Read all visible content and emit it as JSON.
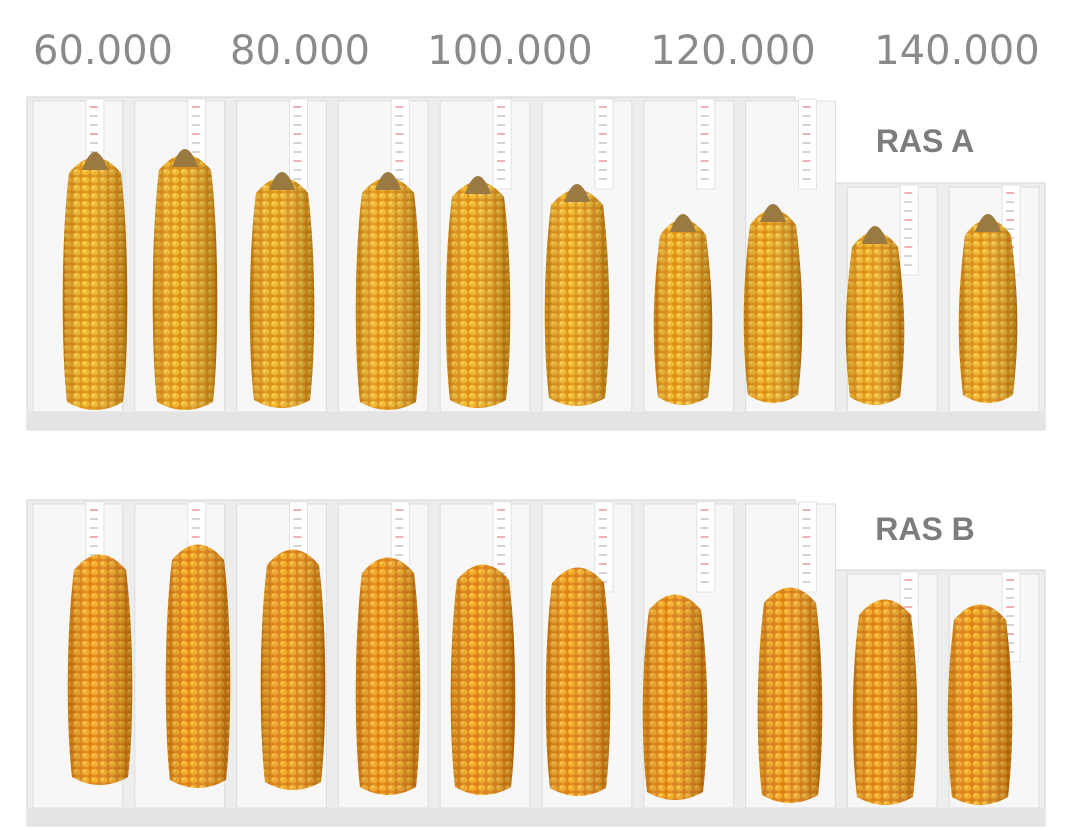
{
  "header": {
    "labels": [
      "60.000",
      "80.000",
      "100.000",
      "120.000",
      "140.000"
    ]
  },
  "panels": [
    {
      "label": "RAS A"
    },
    {
      "label": "RAS B"
    }
  ]
}
